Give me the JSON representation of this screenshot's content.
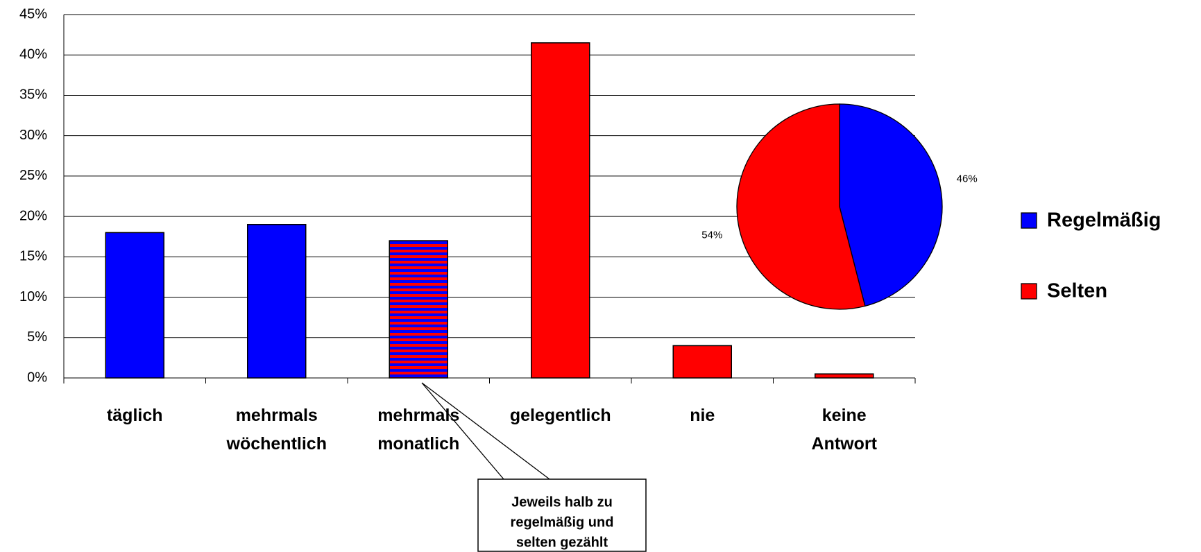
{
  "chart_data": [
    {
      "type": "bar",
      "categories": [
        "täglich",
        "mehrmals wöchentlich",
        "mehrmals monatlich",
        "gelegentlich",
        "nie",
        "keine Antwort"
      ],
      "values": [
        18,
        19,
        17,
        41.5,
        4,
        0.5
      ],
      "colors": [
        "#0000ff",
        "#0000ff",
        [
          "#ff0000",
          "#0000ff"
        ],
        "#ff0000",
        "#ff0000",
        "#ff0000"
      ],
      "ylim": [
        0,
        45
      ],
      "yticks": [
        {
          "value": 0,
          "label": "0%"
        },
        {
          "value": 5,
          "label": "5%"
        },
        {
          "value": 10,
          "label": "10%"
        },
        {
          "value": 15,
          "label": "15%"
        },
        {
          "value": 20,
          "label": "20%"
        },
        {
          "value": 25,
          "label": "25%"
        },
        {
          "value": 30,
          "label": "30%"
        },
        {
          "value": 35,
          "label": "35%"
        },
        {
          "value": 40,
          "label": "40%"
        },
        {
          "value": 45,
          "label": "45%"
        }
      ],
      "grid": true,
      "annotation": [
        "Jeweils halb zu",
        "regelmäßig und",
        "selten gezählt"
      ]
    },
    {
      "type": "pie",
      "categories": [
        "Regelmäßig",
        "Selten"
      ],
      "values": [
        46,
        54
      ],
      "value_labels": [
        "46%",
        "54%"
      ],
      "colors": [
        "#0000ff",
        "#ff0000"
      ],
      "legend": "right"
    }
  ]
}
